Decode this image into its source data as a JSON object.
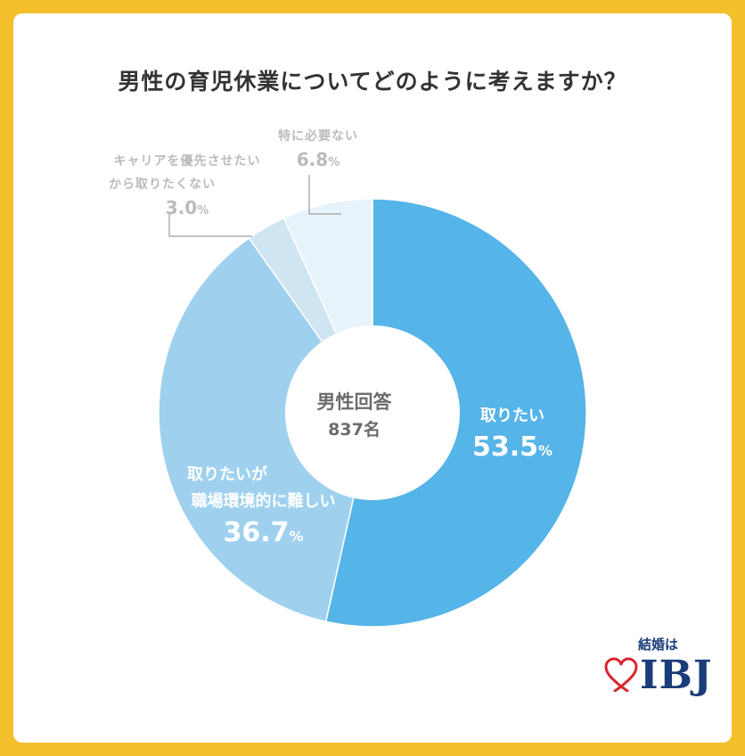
{
  "title": "男性の育児休業についてどのように考えますか？",
  "center_label": {
    "line1": "男性回答",
    "line2": "837名"
  },
  "labels": {
    "take": {
      "name": "取りたい",
      "pct": "53.5",
      "unit": "%"
    },
    "difficult": {
      "line1": "取りたいが",
      "line2": "職場環境的に難しい",
      "pct": "36.7",
      "unit": "%"
    },
    "career": {
      "line1": "キャリアを優先させたい",
      "line2": "から取りたくない",
      "pct": "3.0",
      "unit": "%"
    },
    "unneeded": {
      "name": "特に必要ない",
      "pct": "6.8",
      "unit": "%"
    }
  },
  "logo": {
    "tagline": "結婚は",
    "brand": "IBJ"
  },
  "colors": {
    "background": "#f3c02c",
    "take": "#55b4e8",
    "difficult": "#9fd1ee",
    "career": "#cfe5f1",
    "unneeded": "#e7f3fa",
    "logo_heart": "#d9262f",
    "logo_text": "#1a3c78"
  },
  "chart_data": {
    "type": "pie",
    "donut": true,
    "title": "男性の育児休業についてどのように考えますか？",
    "categories": [
      "取りたい",
      "取りたいが職場環境的に難しい",
      "キャリアを優先させたいから取りたくない",
      "特に必要ない"
    ],
    "values": [
      53.5,
      36.7,
      3.0,
      6.8
    ],
    "unit": "%",
    "start": "12 o'clock, clockwise"
  }
}
